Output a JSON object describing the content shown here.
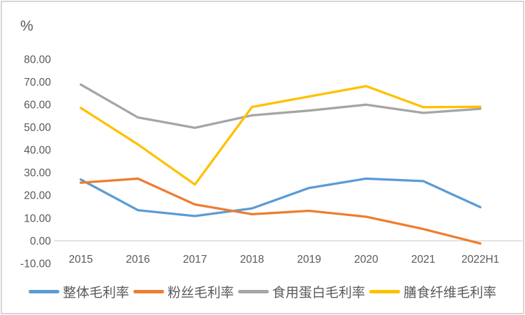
{
  "chart_data": {
    "type": "line",
    "title": "",
    "unit_label": "%",
    "categories": [
      "2015",
      "2016",
      "2017",
      "2018",
      "2019",
      "2020",
      "2021",
      "2022H1"
    ],
    "series": [
      {
        "id": "overall",
        "name": "整体毛利率",
        "color": "#5B9BD5",
        "values": [
          27.0,
          13.5,
          10.9,
          14.3,
          23.3,
          27.4,
          26.3,
          14.8
        ]
      },
      {
        "id": "vermicelli",
        "name": "粉丝毛利率",
        "color": "#ED7D31",
        "values": [
          25.6,
          27.4,
          16.0,
          11.7,
          13.2,
          10.6,
          5.2,
          -1.2
        ]
      },
      {
        "id": "edible-protein",
        "name": "食用蛋白毛利率",
        "color": "#A5A5A5",
        "values": [
          68.9,
          54.4,
          49.8,
          55.3,
          57.4,
          60.0,
          56.4,
          58.2
        ]
      },
      {
        "id": "dietary-fiber",
        "name": "膳食纤维毛利率",
        "color": "#FFC000",
        "values": [
          58.6,
          42.5,
          24.8,
          59.0,
          63.6,
          68.2,
          58.9,
          59.1
        ]
      }
    ],
    "y_axis": {
      "min": -10,
      "max": 80,
      "step": 10,
      "ticks": [
        {
          "label": "80.00",
          "value": 80
        },
        {
          "label": "70.00",
          "value": 70
        },
        {
          "label": "60.00",
          "value": 60
        },
        {
          "label": "50.00",
          "value": 50
        },
        {
          "label": "40.00",
          "value": 40
        },
        {
          "label": "30.00",
          "value": 30
        },
        {
          "label": "20.00",
          "value": 20
        },
        {
          "label": "10.00",
          "value": 10
        },
        {
          "label": "0.00",
          "value": 0
        },
        {
          "label": "-10.00",
          "value": -10
        }
      ]
    },
    "legend_position": "bottom",
    "grid": false,
    "colors": {
      "axis_line": "#D9D9D9",
      "text": "#595959",
      "frame_border": "#D6D6D6",
      "background": "#FFFFFF"
    }
  }
}
